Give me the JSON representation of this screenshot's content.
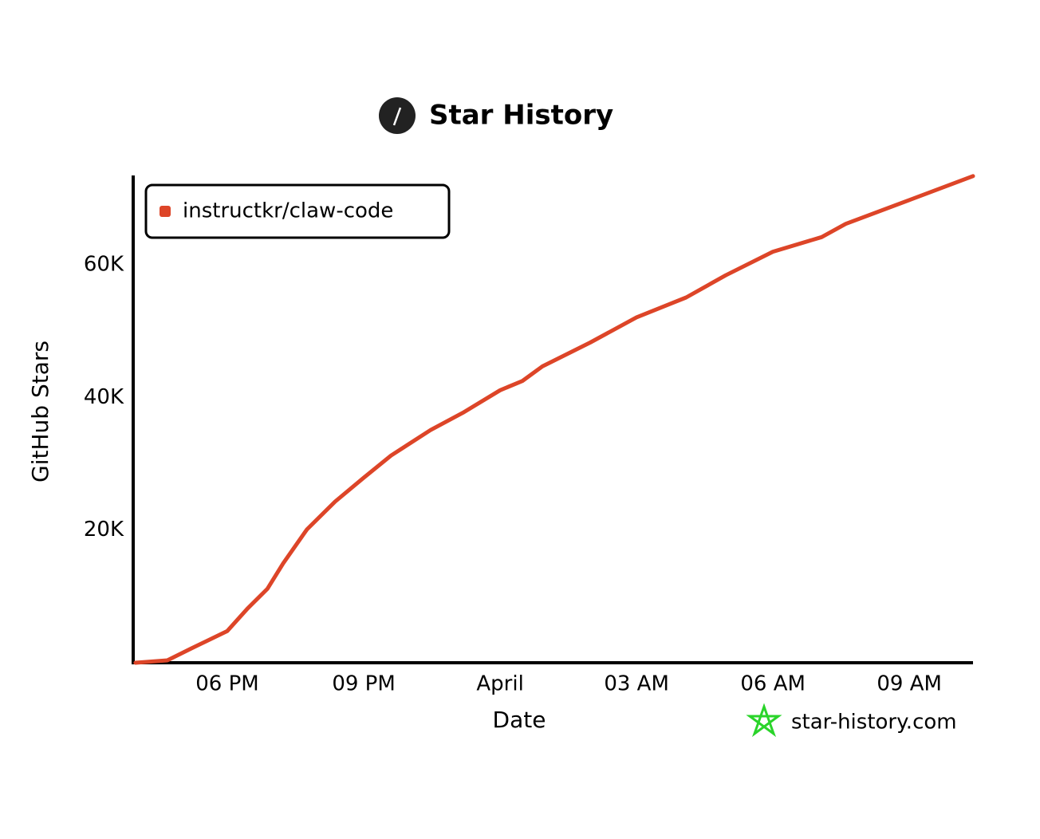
{
  "chart_data": {
    "type": "line",
    "title": "Star History",
    "x_label": "Date",
    "y_label": "GitHub Stars",
    "watermark": "star-history.com",
    "x": [
      15.98,
      16.68,
      17.21,
      18,
      18.44,
      18.88,
      19.23,
      19.75,
      20.37,
      21,
      21.6,
      22.47,
      23.18,
      24,
      24.49,
      24.93,
      25.98,
      27,
      28.09,
      28.96,
      30,
      31.07,
      31.6,
      33,
      34.4
    ],
    "series": [
      {
        "name": "instructkr/claw-code",
        "color": "#dd4528",
        "values": [
          0,
          360,
          2160,
          4790,
          8140,
          11140,
          15000,
          20100,
          24300,
          27900,
          31250,
          35100,
          37700,
          41100,
          42500,
          44700,
          48300,
          52100,
          55100,
          58440,
          62000,
          64200,
          66200,
          69800,
          73400
        ]
      }
    ],
    "xlim": [
      15.93,
      34.4
    ],
    "xticks": [
      {
        "value": 18,
        "label": "06 PM"
      },
      {
        "value": 21,
        "label": "09 PM"
      },
      {
        "value": 24,
        "label": "April"
      },
      {
        "value": 27,
        "label": "03 AM"
      },
      {
        "value": 30,
        "label": "06 AM"
      },
      {
        "value": 33,
        "label": "09 AM"
      }
    ],
    "ylim": [
      0,
      73500
    ],
    "yticks": [
      {
        "value": 20000,
        "label": "20K"
      },
      {
        "value": 40000,
        "label": "40K"
      },
      {
        "value": 60000,
        "label": "60K"
      }
    ],
    "grid": false,
    "legend": "upper left"
  }
}
